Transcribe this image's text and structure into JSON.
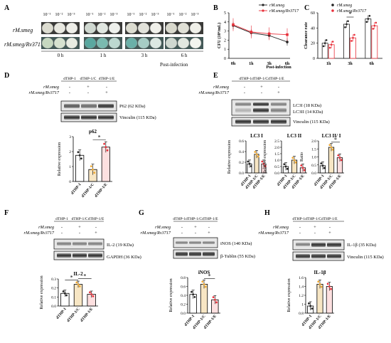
{
  "panels": {
    "A": {
      "label": "A",
      "dilutions": [
        "10⁻¹",
        "10⁻²",
        "10⁻³",
        "10⁻¹",
        "10⁻²",
        "10⁻³",
        "10⁻¹",
        "10⁻²",
        "10⁻³",
        "10⁻¹",
        "10⁻²",
        "10⁻³"
      ],
      "rows": [
        "rM.smeg",
        "rM.smeg/Rv3717"
      ],
      "times": [
        "0 h",
        "1 h",
        "3 h",
        "6 h"
      ],
      "footer": "Post-infection"
    },
    "D": {
      "label": "D",
      "lanes": [
        "dTHP-1",
        "dTHP-1/C",
        "dTHP-1/E"
      ],
      "cond_rows": [
        {
          "name": "rM.smeg",
          "marks": [
            "-",
            "+",
            "-"
          ]
        },
        {
          "name": "rM.smeg/Rv3717",
          "marks": [
            "-",
            "-",
            "+"
          ]
        }
      ],
      "bands": [
        "P62 (62 KDa)",
        "Vinculin (115 KDa)"
      ]
    },
    "E": {
      "label": "E",
      "lanes": [
        "dTHP-1",
        "dTHP-1/C",
        "dTHP-1/E"
      ],
      "lanes_joined": "dTHP-1dTHP-1/CdTHP-1/E",
      "cond_rows": [
        {
          "name": "rM.smeg",
          "marks": [
            "-",
            "+",
            "-"
          ]
        },
        {
          "name": "rM.smeg/Rv3717",
          "marks": [
            "-",
            "-",
            "+"
          ]
        }
      ],
      "bands": [
        "LC3I (18 KDa)",
        "LC3II (14 KDa)",
        "Vinculin (115 KDa)"
      ]
    },
    "F": {
      "label": "F",
      "lanes": [
        "dTHP-1",
        "dTHP-1/C",
        "dTHP-1/E"
      ],
      "cond_rows": [
        {
          "name": "rM.smeg",
          "marks": [
            "-",
            "+",
            "-"
          ]
        },
        {
          "name": "rM.smeg/Rv3717",
          "marks": [
            "-",
            "-",
            "+"
          ]
        }
      ],
      "bands": [
        "IL-2 (19 KDa)",
        "GAPDH (36 KDa)"
      ]
    },
    "G": {
      "label": "G",
      "lanes_joined": "dTHP-1dTHP-1/CdTHP-1/E",
      "cond_rows": [
        {
          "name": "rM.smeg",
          "marks": [
            "-",
            "+",
            "-"
          ]
        },
        {
          "name": "rM.smeg/Rv3717",
          "marks": [
            "-",
            "-",
            "+"
          ]
        }
      ],
      "bands": [
        "iNOS (140 KDa)",
        "β-Tublin (55 KDa)"
      ]
    },
    "H": {
      "label": "H",
      "lanes_joined": "dTHP-1dTHP-1/CdTHP-1/E",
      "cond_rows": [
        {
          "name": "rM.smeg",
          "marks": [
            "-",
            "+",
            "-"
          ]
        },
        {
          "name": "rM.smeg/Rv3717",
          "marks": [
            "-",
            "-",
            "+"
          ]
        }
      ],
      "bands": [
        "IL-1β (35 KDa)",
        "Vinculin (115 KDa)"
      ]
    }
  },
  "colors": {
    "ctrl": "#222222",
    "c": "#f0a830",
    "e": "#e8303a",
    "bar_c_fill": "#f7e6c4"
  },
  "chart_data": [
    {
      "id": "B",
      "label": "B",
      "type": "line",
      "x": [
        "0h",
        "1h",
        "3h",
        "6h"
      ],
      "xlabel": "Post-infection",
      "ylabel": "CFU (10⁴/mL)",
      "ylim": [
        0,
        5
      ],
      "yticks": [
        0,
        1,
        2,
        3,
        4,
        5
      ],
      "series": [
        {
          "name": "rM.smeg",
          "values": [
            3.6,
            2.8,
            2.5,
            1.8
          ],
          "color": "#222222"
        },
        {
          "name": "rM.smeg/Rv3717",
          "values": [
            3.7,
            2.9,
            2.7,
            2.6
          ],
          "color": "#e8303a"
        }
      ]
    },
    {
      "id": "C",
      "label": "C",
      "type": "bar",
      "categories": [
        "1h",
        "3h",
        "6h"
      ],
      "ylabel": "Clearance rate",
      "ylim": [
        0,
        60
      ],
      "yticks": [
        0,
        20,
        40,
        60
      ],
      "series": [
        {
          "name": "rM.smeg",
          "values": [
            20,
            45,
            52
          ],
          "color": "#222222"
        },
        {
          "name": "rM.smeg/Rv3717",
          "values": [
            18,
            27,
            43
          ],
          "color": "#e8303a"
        }
      ],
      "significance": [
        {
          "category": "3h",
          "label": "*"
        }
      ]
    },
    {
      "id": "D_p62",
      "type": "bar",
      "title": "p62",
      "categories": [
        "dTHP-1",
        "dTHP-1/C",
        "dTHP-1/E"
      ],
      "ylabel": "Relative expression",
      "ylim": [
        0,
        3
      ],
      "yticks": [
        0,
        1,
        2,
        3
      ],
      "values": [
        1.75,
        0.8,
        2.3
      ],
      "significance": [
        {
          "pair": [
            "dTHP-1/C",
            "dTHP-1/E"
          ],
          "label": "*"
        }
      ]
    },
    {
      "id": "E_LC3I",
      "type": "bar",
      "title": "LC3 I",
      "categories": [
        "dTHP-1",
        "dTHP-1/C",
        "dTHP-1/E"
      ],
      "ylabel": "Relative expression",
      "ylim": [
        0,
        0.6
      ],
      "yticks": [
        0.0,
        0.2,
        0.4,
        0.6
      ],
      "values": [
        0.17,
        0.35,
        0.17
      ]
    },
    {
      "id": "E_LC3II",
      "type": "bar",
      "title": "LC3 II",
      "categories": [
        "dTHP-1",
        "dTHP-1/C",
        "dTHP-1/E"
      ],
      "ylabel": "Relative expression",
      "ylim": [
        0,
        2.5
      ],
      "yticks": [
        0.0,
        0.5,
        1.0,
        1.5,
        2.0,
        2.5
      ],
      "values": [
        0.5,
        1.0,
        0.4
      ]
    },
    {
      "id": "E_ratio",
      "type": "bar",
      "title": "LC3 II/ I",
      "categories": [
        "dTHP-1",
        "dTHP-1/C",
        "dTHP-1/E"
      ],
      "ylabel": "Ratio",
      "ylim": [
        0,
        2.0
      ],
      "yticks": [
        0.0,
        0.5,
        1.0,
        1.5,
        2.0
      ],
      "values": [
        0.45,
        1.6,
        0.95
      ],
      "significance": [
        {
          "pair": [
            "dTHP-1/C",
            "dTHP-1/E"
          ],
          "label": "*"
        }
      ]
    },
    {
      "id": "F_IL2",
      "type": "bar",
      "title": "IL-2",
      "categories": [
        "dTHP-1",
        "dTHP-1/C",
        "dTHP-1/E"
      ],
      "ylabel": "Relative expression",
      "ylim": [
        0,
        0.3
      ],
      "yticks": [
        0.0,
        0.1,
        0.2,
        0.3
      ],
      "values": [
        0.14,
        0.24,
        0.13
      ],
      "significance": [
        {
          "pair": [
            "dTHP-1",
            "dTHP-1/C"
          ],
          "label": "*"
        },
        {
          "pair": [
            "dTHP-1/C",
            "dTHP-1/E"
          ],
          "label": "*"
        }
      ]
    },
    {
      "id": "G_iNOS",
      "type": "bar",
      "title": "iNOS",
      "categories": [
        "dTHP-1",
        "dTHP-1/C",
        "dTHP-1/E"
      ],
      "ylabel": "Relative expression",
      "ylim": [
        0,
        0.8
      ],
      "yticks": [
        0.0,
        0.2,
        0.4,
        0.6,
        0.8
      ],
      "values": [
        0.42,
        0.65,
        0.3
      ],
      "significance": [
        {
          "pair": [
            "dTHP-1/C",
            "dTHP-1/E"
          ],
          "label": "*"
        }
      ]
    },
    {
      "id": "H_IL1b",
      "type": "bar",
      "title": "IL-1β",
      "categories": [
        "dTHP-1",
        "dTHP-1/C",
        "dTHP-1/E"
      ],
      "ylabel": "Relative expression",
      "ylim": [
        0.8,
        1.6
      ],
      "yticks": [
        0.8,
        1.0,
        1.2,
        1.4,
        1.6
      ],
      "values": [
        0.96,
        1.45,
        1.4
      ]
    }
  ]
}
